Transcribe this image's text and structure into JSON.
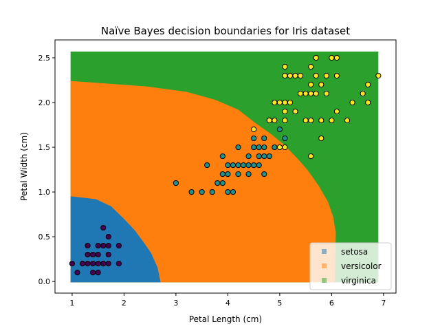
{
  "chart_data": {
    "type": "scatter",
    "title": "Naïve Bayes decision boundaries for Iris dataset",
    "xlabel": "Petal Length (cm)",
    "ylabel": "Petal Width (cm)",
    "xlim": [
      0.67,
      7.24
    ],
    "ylim": [
      -0.13,
      2.7
    ],
    "xticks": [
      1,
      2,
      3,
      4,
      5,
      6,
      7
    ],
    "xtick_labels": [
      "1",
      "2",
      "3",
      "4",
      "5",
      "6",
      "7"
    ],
    "yticks": [
      0,
      0.5,
      1,
      1.5,
      2,
      2.5
    ],
    "ytick_labels": [
      "0.0",
      "0.5",
      "1.0",
      "1.5",
      "2.0",
      "2.5"
    ],
    "grid": false,
    "legend_position": "lower-right",
    "regions": {
      "mesh_extent": {
        "x": [
          0.97,
          6.9
        ],
        "y": [
          -0.01,
          2.57
        ]
      },
      "classes": [
        {
          "name": "setosa",
          "color": "#1f77b4",
          "boundary": [
            [
              1,
              0.95
            ],
            [
              1.46,
              0.92
            ],
            [
              1.75,
              0.84
            ],
            [
              2.0,
              0.7
            ],
            [
              2.21,
              0.57
            ],
            [
              2.4,
              0.42
            ],
            [
              2.52,
              0.32
            ],
            [
              2.65,
              0.15
            ],
            [
              2.7,
              0
            ]
          ]
        },
        {
          "name": "versicolor",
          "color": "#ff7f0e",
          "boundary": [
            [
              1,
              2.24
            ],
            [
              2.43,
              2.18
            ],
            [
              3.2,
              2.12
            ],
            [
              3.76,
              2.03
            ],
            [
              4.2,
              1.92
            ],
            [
              4.51,
              1.78
            ],
            [
              4.85,
              1.64
            ],
            [
              5.08,
              1.53
            ],
            [
              5.33,
              1.38
            ],
            [
              5.53,
              1.25
            ],
            [
              5.75,
              1.07
            ],
            [
              5.93,
              0.89
            ],
            [
              6.03,
              0.72
            ],
            [
              6.08,
              0.55
            ],
            [
              6.06,
              0
            ]
          ]
        },
        {
          "name": "virginica",
          "color": "#2ca02c",
          "boundary": []
        }
      ]
    },
    "series": [
      {
        "name": "setosa",
        "color": "#440154",
        "points": [
          [
            1.4,
            0.2
          ],
          [
            1.3,
            0.2
          ],
          [
            1.5,
            0.2
          ],
          [
            1.7,
            0.4
          ],
          [
            1.4,
            0.3
          ],
          [
            1.5,
            0.1
          ],
          [
            1.6,
            0.2
          ],
          [
            1.4,
            0.1
          ],
          [
            1.1,
            0.1
          ],
          [
            1.2,
            0.2
          ],
          [
            1.5,
            0.4
          ],
          [
            1.3,
            0.4
          ],
          [
            1.7,
            0.3
          ],
          [
            1.5,
            0.3
          ],
          [
            1.7,
            0.2
          ],
          [
            1.0,
            0.2
          ],
          [
            1.7,
            0.5
          ],
          [
            1.9,
            0.2
          ],
          [
            1.6,
            0.4
          ],
          [
            1.3,
            0.3
          ],
          [
            1.6,
            0.6
          ],
          [
            1.9,
            0.4
          ],
          [
            1.6,
            0.2
          ]
        ]
      },
      {
        "name": "versicolor",
        "color": "#21918c",
        "points": [
          [
            4.7,
            1.4
          ],
          [
            4.5,
            1.5
          ],
          [
            4.9,
            1.5
          ],
          [
            4.0,
            1.3
          ],
          [
            4.6,
            1.5
          ],
          [
            4.5,
            1.3
          ],
          [
            4.7,
            1.6
          ],
          [
            3.3,
            1.0
          ],
          [
            4.6,
            1.3
          ],
          [
            3.9,
            1.4
          ],
          [
            3.5,
            1.0
          ],
          [
            4.2,
            1.5
          ],
          [
            4.0,
            1.0
          ],
          [
            3.6,
            1.3
          ],
          [
            4.4,
            1.4
          ],
          [
            4.1,
            1.0
          ],
          [
            3.9,
            1.1
          ],
          [
            4.8,
            1.8
          ],
          [
            4.7,
            1.2
          ],
          [
            4.3,
            1.3
          ],
          [
            4.8,
            1.4
          ],
          [
            5.0,
            1.7
          ],
          [
            3.8,
            1.1
          ],
          [
            3.7,
            1.0
          ],
          [
            3.9,
            1.2
          ],
          [
            5.1,
            1.6
          ],
          [
            4.5,
            1.6
          ],
          [
            4.7,
            1.5
          ],
          [
            4.4,
            1.3
          ],
          [
            4.1,
            1.3
          ],
          [
            4.4,
            1.2
          ],
          [
            4.6,
            1.4
          ],
          [
            4.0,
            1.2
          ],
          [
            4.2,
            1.3
          ],
          [
            4.2,
            1.2
          ],
          [
            3.0,
            1.1
          ]
        ]
      },
      {
        "name": "virginica",
        "color": "#fde725",
        "points": [
          [
            6.0,
            2.5
          ],
          [
            5.1,
            1.9
          ],
          [
            5.9,
            2.1
          ],
          [
            5.6,
            1.8
          ],
          [
            5.8,
            2.2
          ],
          [
            6.6,
            2.1
          ],
          [
            4.5,
            1.7
          ],
          [
            6.3,
            1.8
          ],
          [
            5.8,
            1.8
          ],
          [
            6.1,
            2.5
          ],
          [
            5.1,
            2.0
          ],
          [
            5.3,
            1.9
          ],
          [
            5.5,
            2.1
          ],
          [
            5.0,
            2.0
          ],
          [
            5.1,
            2.4
          ],
          [
            5.3,
            2.3
          ],
          [
            5.5,
            1.8
          ],
          [
            6.7,
            2.2
          ],
          [
            6.9,
            2.3
          ],
          [
            5.0,
            1.5
          ],
          [
            5.7,
            2.3
          ],
          [
            4.9,
            2.0
          ],
          [
            6.7,
            2.0
          ],
          [
            4.9,
            1.8
          ],
          [
            5.7,
            2.1
          ],
          [
            6.0,
            1.8
          ],
          [
            4.8,
            1.8
          ],
          [
            5.6,
            2.1
          ],
          [
            5.8,
            1.6
          ],
          [
            6.1,
            1.9
          ],
          [
            6.4,
            2.0
          ],
          [
            5.6,
            2.2
          ],
          [
            5.1,
            1.5
          ],
          [
            5.6,
            1.4
          ],
          [
            6.1,
            2.3
          ],
          [
            5.6,
            2.4
          ],
          [
            5.4,
            2.1
          ],
          [
            5.1,
            2.3
          ],
          [
            5.9,
            2.3
          ],
          [
            5.7,
            2.5
          ],
          [
            5.2,
            2.3
          ],
          [
            5.2,
            2.0
          ],
          [
            5.4,
            2.3
          ],
          [
            5.1,
            1.8
          ]
        ]
      }
    ],
    "legend": [
      {
        "label": "setosa",
        "color": "#1f77b4"
      },
      {
        "label": "versicolor",
        "color": "#ff7f0e"
      },
      {
        "label": "virginica",
        "color": "#2ca02c"
      }
    ]
  }
}
